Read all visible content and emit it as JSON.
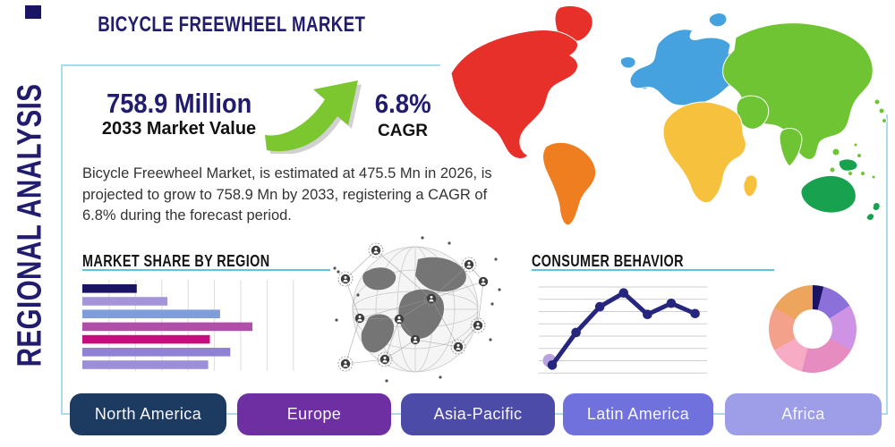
{
  "page": {
    "title": "BICYCLE FREEWHEEL MARKET",
    "side_label": "REGIONAL ANALYSIS",
    "accent_teal": "#62c3d6",
    "navy": "#211c6e",
    "corner_square_color": "#1b1464",
    "box_border_color": "#aadcec"
  },
  "stats": {
    "market_value": "758.9 Million",
    "market_value_label": "2033 Market Value",
    "cagr_value": "6.8%",
    "cagr_label": "CAGR",
    "arrow_color": "#7cc62f"
  },
  "description": {
    "lines": [
      "Bicycle Freewheel Market, is estimated at 475.5 Mn in 2026, is",
      "projected to grow to 758.9 Mn by 2033, registering a CAGR of",
      "6.8% during the forecast period."
    ]
  },
  "sections": {
    "market_share_title": "MARKET SHARE BY REGION",
    "consumer_title": "CONSUMER BEHAVIOR"
  },
  "map": {
    "colors": {
      "north_america": "#e8302a",
      "south_america": "#ee7e20",
      "europe": "#45a2de",
      "africa": "#f6c13d",
      "asia": "#6fc433",
      "oceania": "#18a14e"
    }
  },
  "chart_data": [
    {
      "type": "bar",
      "title": "MARKET SHARE BY REGION",
      "orientation": "horizontal",
      "categories": [
        "",
        "",
        "",
        "",
        "",
        "",
        ""
      ],
      "values": [
        32,
        50,
        81,
        100,
        75,
        87,
        74
      ],
      "value_note": "relative bar lengths (max=100); no numeric axis labels shown",
      "colors": [
        "#1b1464",
        "#a495d8",
        "#7f9cdb",
        "#b04fa8",
        "#c60c7e",
        "#8f81d4",
        "#9c8ed9"
      ],
      "grid": "vertical",
      "grid_color": "#dcdcdc"
    },
    {
      "type": "line",
      "title": "CONSUMER BEHAVIOR",
      "x": [
        1,
        2,
        3,
        4,
        5,
        6,
        7
      ],
      "values": [
        9,
        47,
        77,
        93,
        68,
        81,
        69
      ],
      "ylim": [
        0,
        100
      ],
      "value_note": "estimated from plot; no axis labels shown",
      "line_color": "#26267e",
      "point_color": "#26267e",
      "first_point_halo_color": "#b7a2e2",
      "grid": "horizontal",
      "grid_color": "#cfcfcf"
    },
    {
      "type": "pie",
      "donut": true,
      "values": [
        4,
        12,
        17,
        21,
        13,
        16,
        17
      ],
      "unit": "percent (estimated; no labels shown)",
      "colors": [
        "#1b1464",
        "#8a70d8",
        "#ce93e4",
        "#e78cc1",
        "#f7abc5",
        "#f4a18c",
        "#eda55e"
      ]
    }
  ],
  "buttons": [
    {
      "label": "North America",
      "color": "#1d3b60"
    },
    {
      "label": "Europe",
      "color": "#6e2fa2"
    },
    {
      "label": "Asia-Pacific",
      "color": "#4c4ba7"
    },
    {
      "label": "Latin America",
      "color": "#7171dd"
    },
    {
      "label": "Africa",
      "color": "#9d9de8"
    }
  ]
}
